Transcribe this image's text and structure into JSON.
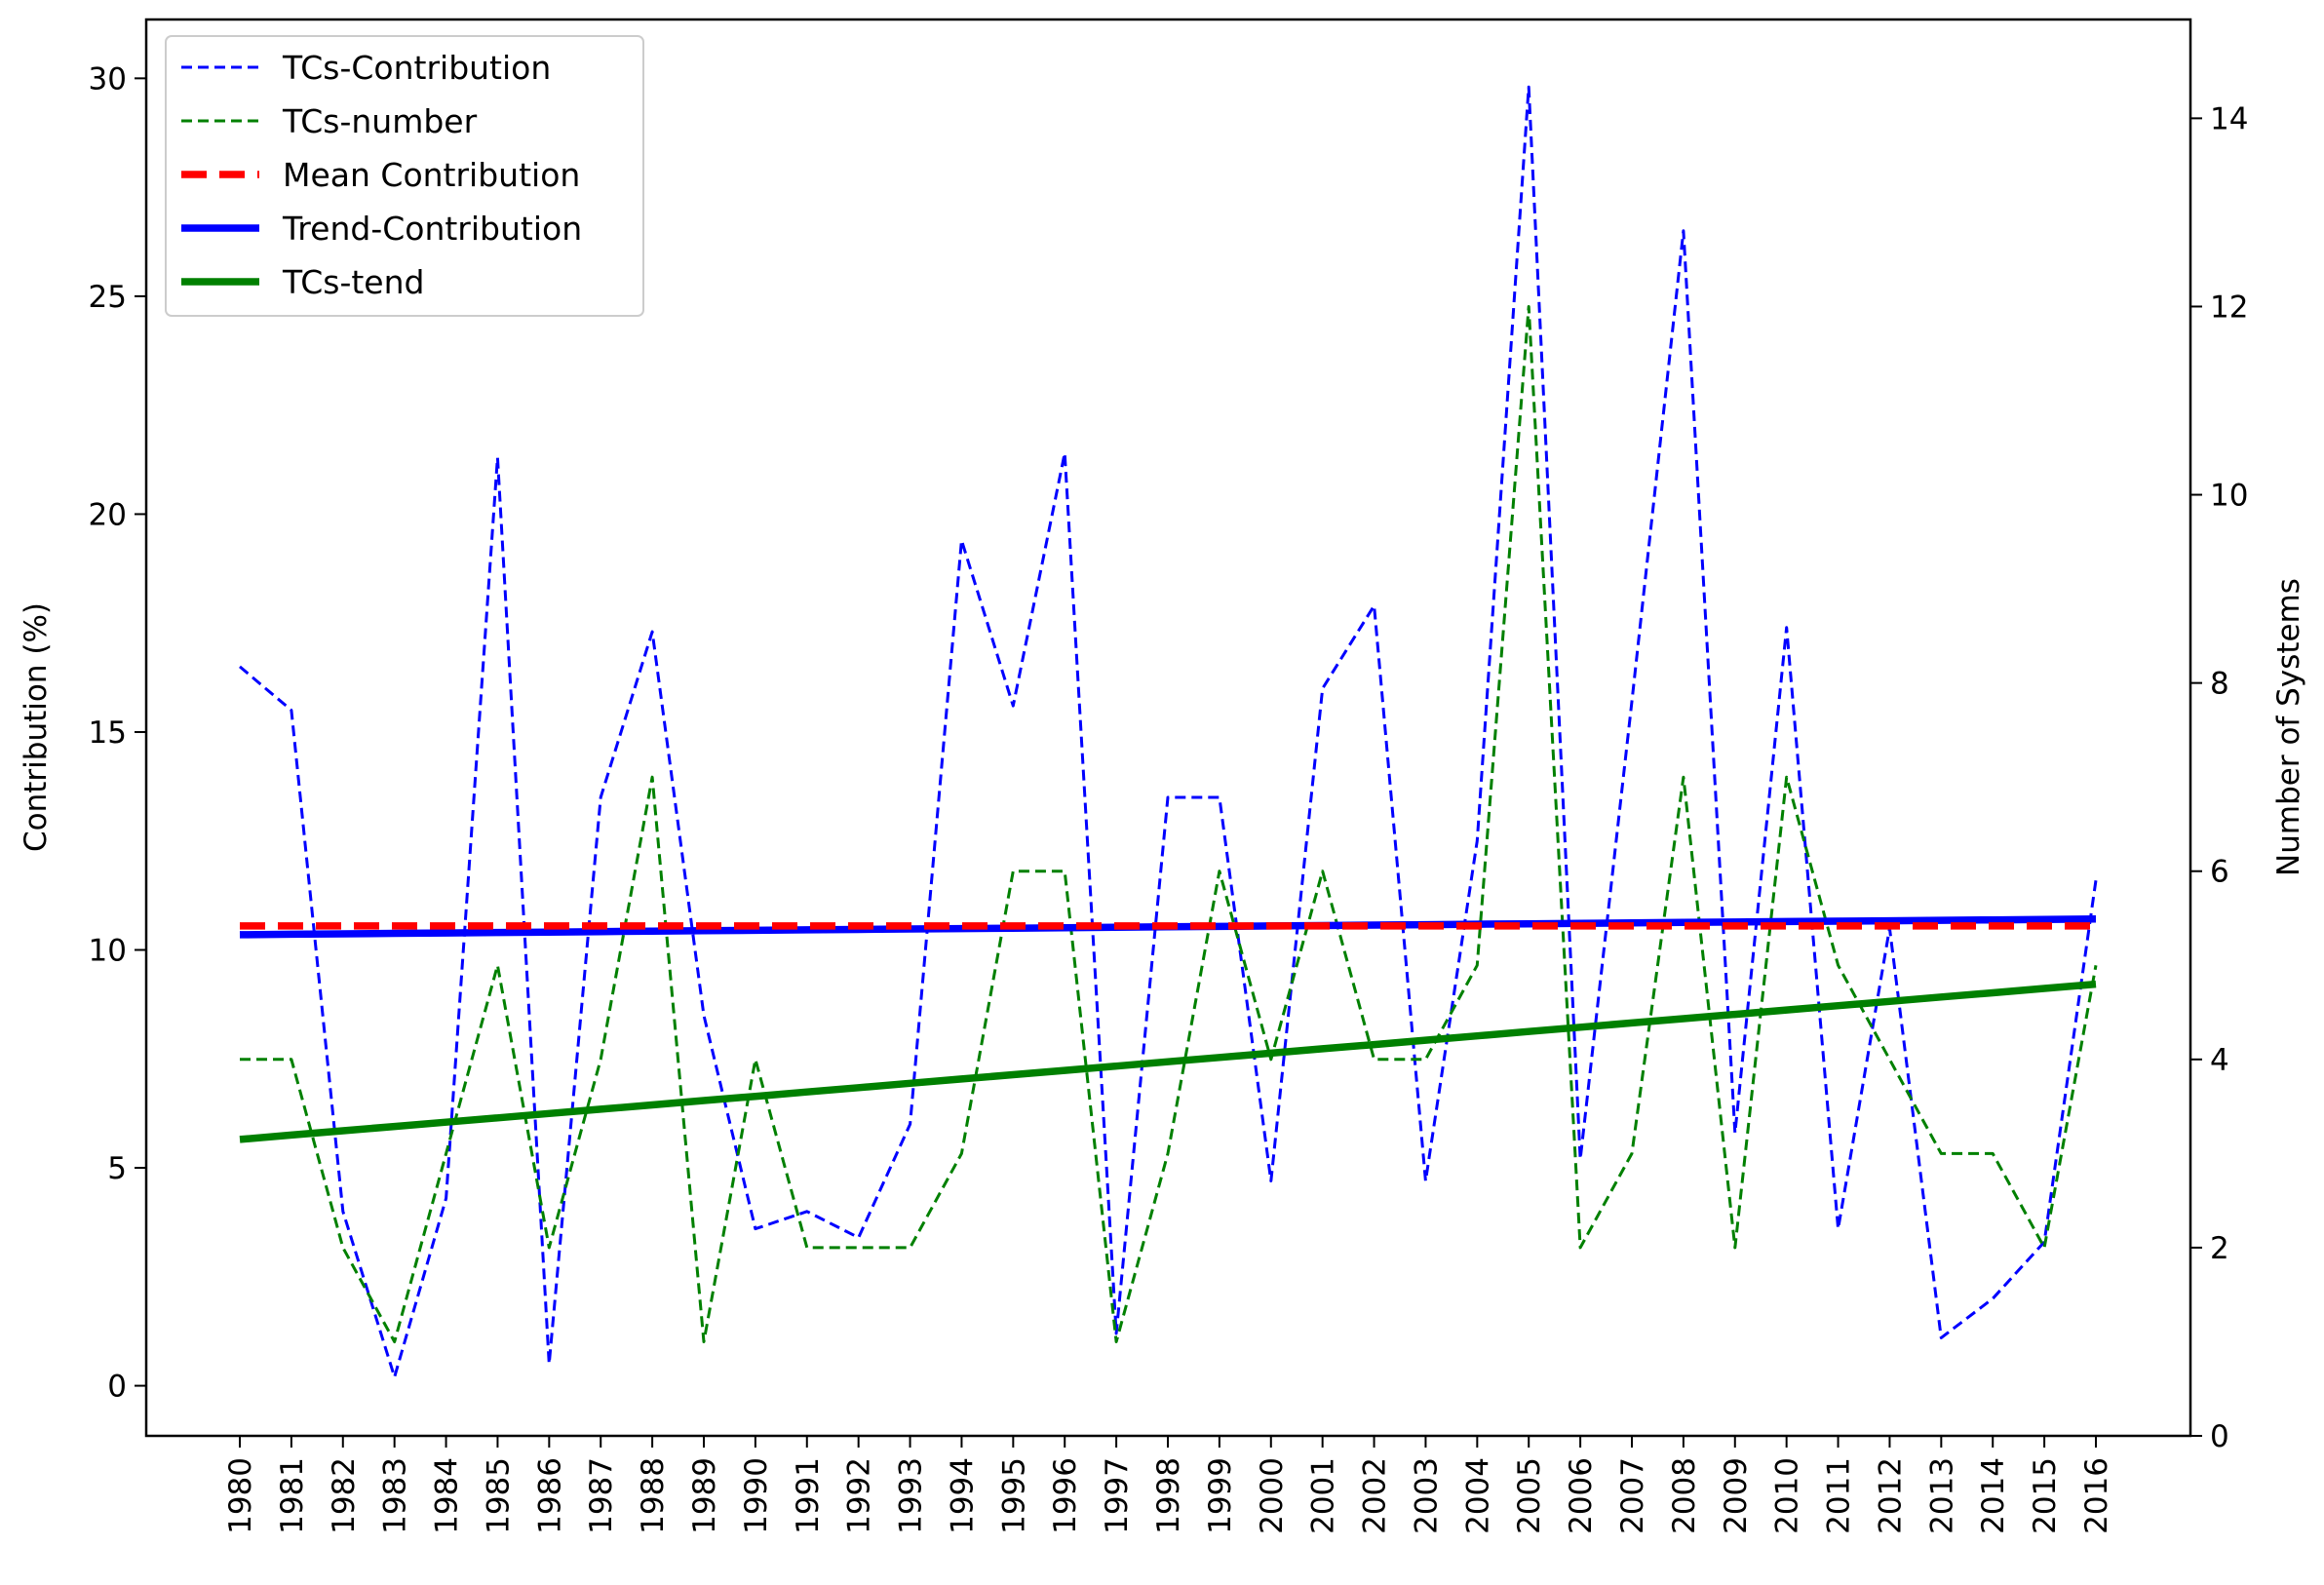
{
  "chart_data": {
    "type": "line",
    "title": "",
    "x": [
      1980,
      1981,
      1982,
      1983,
      1984,
      1985,
      1986,
      1987,
      1988,
      1989,
      1990,
      1991,
      1992,
      1993,
      1994,
      1995,
      1996,
      1997,
      1998,
      1999,
      2000,
      2001,
      2002,
      2003,
      2004,
      2005,
      2006,
      2007,
      2008,
      2009,
      2010,
      2011,
      2012,
      2013,
      2014,
      2015,
      2016
    ],
    "x_tick_labels": [
      "1980",
      "1981",
      "1982",
      "1983",
      "1984",
      "1985",
      "1986",
      "1987",
      "1988",
      "1989",
      "1990",
      "1991",
      "1992",
      "1993",
      "1994",
      "1995",
      "1996",
      "1997",
      "1998",
      "1999",
      "2000",
      "2001",
      "2002",
      "2003",
      "2004",
      "2005",
      "2006",
      "2007",
      "2008",
      "2009",
      "2010",
      "2011",
      "2012",
      "2013",
      "2014",
      "2015",
      "2016"
    ],
    "left_axis": {
      "label": "Contribution (%)",
      "ylim": [
        -1.15,
        31.35
      ],
      "ticks": [
        0,
        5,
        10,
        15,
        20,
        25,
        30
      ],
      "tick_labels": [
        "0",
        "5",
        "10",
        "15",
        "20",
        "25",
        "30"
      ]
    },
    "right_axis": {
      "label": "Number of Systems",
      "ylim": [
        0,
        15.05
      ],
      "ticks": [
        0,
        2,
        4,
        6,
        8,
        10,
        12,
        14
      ],
      "tick_labels": [
        "0",
        "2",
        "4",
        "6",
        "8",
        "10",
        "12",
        "14"
      ]
    },
    "series": [
      {
        "name": "TCs-Contribution",
        "axis": "left",
        "style": "dashed-thin",
        "color": "#0000ff",
        "values": [
          16.5,
          15.5,
          4.0,
          0.2,
          4.3,
          21.3,
          0.5,
          13.5,
          17.3,
          8.5,
          3.6,
          4.0,
          3.4,
          6.0,
          19.4,
          15.6,
          21.4,
          1.2,
          13.5,
          13.5,
          4.7,
          16.0,
          17.9,
          4.7,
          12.5,
          29.8,
          5.2,
          15.7,
          26.5,
          5.8,
          17.4,
          3.6,
          10.5,
          1.1,
          2.0,
          3.3,
          11.6
        ]
      },
      {
        "name": "TCs-number",
        "axis": "right",
        "style": "dashed-thin",
        "color": "#008000",
        "values": [
          4,
          4,
          2,
          1,
          3,
          5,
          2,
          4,
          7,
          1,
          4,
          2,
          2,
          2,
          3,
          6,
          6,
          1,
          3,
          6,
          4,
          6,
          4,
          4,
          5,
          12,
          2,
          3,
          7,
          2,
          7,
          5,
          4,
          3,
          3,
          2,
          5
        ]
      },
      {
        "name": "Mean Contribution",
        "axis": "left",
        "style": "dashed-thick",
        "color": "#ff0000",
        "values": [
          10.55,
          10.55,
          10.55,
          10.55,
          10.55,
          10.55,
          10.55,
          10.55,
          10.55,
          10.55,
          10.55,
          10.55,
          10.55,
          10.55,
          10.55,
          10.55,
          10.55,
          10.55,
          10.55,
          10.55,
          10.55,
          10.55,
          10.55,
          10.55,
          10.55,
          10.55,
          10.55,
          10.55,
          10.55,
          10.55,
          10.55,
          10.55,
          10.55,
          10.55,
          10.55,
          10.55,
          10.55
        ]
      },
      {
        "name": "Trend-Contribution",
        "axis": "left",
        "style": "solid-thick",
        "color": "#0000ff",
        "values": [
          10.35,
          10.36,
          10.37,
          10.38,
          10.39,
          10.4,
          10.41,
          10.42,
          10.43,
          10.44,
          10.45,
          10.46,
          10.47,
          10.48,
          10.49,
          10.5,
          10.51,
          10.52,
          10.53,
          10.54,
          10.55,
          10.56,
          10.57,
          10.58,
          10.59,
          10.6,
          10.61,
          10.62,
          10.63,
          10.64,
          10.65,
          10.66,
          10.67,
          10.68,
          10.69,
          10.7,
          10.71
        ]
      },
      {
        "name": "TCs-tend",
        "axis": "right",
        "style": "solid-thick",
        "color": "#008000",
        "values": [
          3.15,
          3.196,
          3.242,
          3.288,
          3.333,
          3.379,
          3.425,
          3.471,
          3.517,
          3.563,
          3.608,
          3.654,
          3.7,
          3.746,
          3.792,
          3.838,
          3.883,
          3.929,
          3.975,
          4.021,
          4.067,
          4.113,
          4.158,
          4.204,
          4.25,
          4.296,
          4.342,
          4.388,
          4.433,
          4.479,
          4.525,
          4.571,
          4.617,
          4.663,
          4.708,
          4.754,
          4.8
        ]
      }
    ],
    "legend_placement": "top-left",
    "grid": false
  }
}
